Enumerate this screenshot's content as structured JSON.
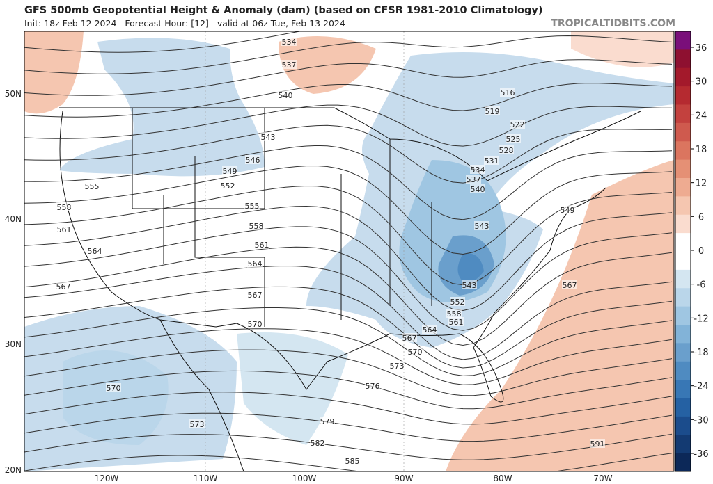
{
  "header": {
    "title": "GFS 500mb Geopotential Height & Anomaly (dam) (based on CFSR 1981-2010 Climatology)",
    "subtitle": "Init: 18z Feb 12 2024   Forecast Hour: [12]   valid at 06z Tue, Feb 13 2024",
    "site": "TROPICALTIDBITS.COM"
  },
  "map": {
    "lat_labels": [
      "50N",
      "40N",
      "30N",
      "20N"
    ],
    "lon_labels": [
      "120W",
      "110W",
      "100W",
      "90W",
      "80W",
      "70W"
    ],
    "contour_labels": [
      534,
      537,
      540,
      543,
      546,
      549,
      552,
      555,
      555,
      558,
      558,
      561,
      561,
      564,
      564,
      567,
      567,
      570,
      570,
      573,
      573,
      576,
      579,
      582,
      585,
      516,
      519,
      522,
      525,
      528,
      531,
      534,
      537,
      540,
      543,
      549,
      543,
      552,
      558,
      561,
      564,
      567,
      570,
      567,
      591
    ]
  },
  "colorbar": {
    "ticks": [
      36,
      30,
      24,
      18,
      12,
      6,
      0,
      -6,
      -12,
      -18,
      -24,
      -30,
      -36
    ],
    "colors": [
      "#7a0f7a",
      "#8e1030",
      "#a3192b",
      "#b52a30",
      "#c3413e",
      "#cf5a4e",
      "#db755f",
      "#e59075",
      "#eeab91",
      "#f5c6b0",
      "#fadccf",
      "#ffffff",
      "#ffffff",
      "#d4e6f1",
      "#bad6ea",
      "#9fc6e2",
      "#82b3d8",
      "#6a9fcc",
      "#4f8bc1",
      "#3877b5",
      "#2561a3",
      "#1b4c8c",
      "#133a72",
      "#0c2858"
    ]
  }
}
